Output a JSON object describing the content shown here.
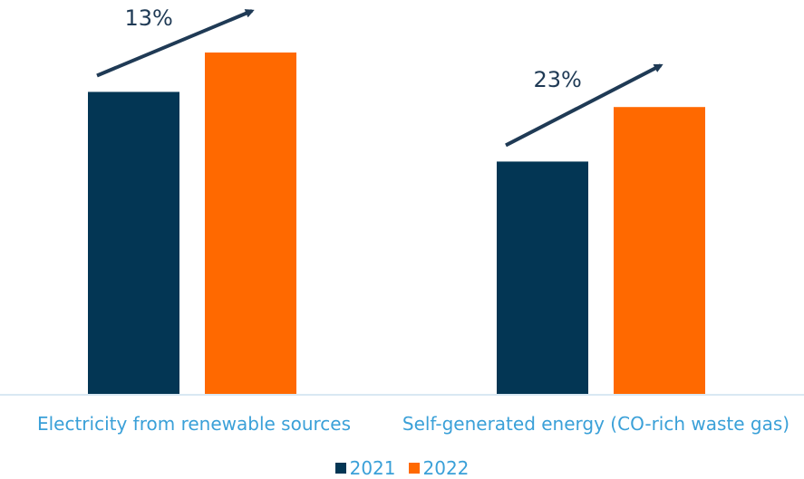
{
  "chart_data": {
    "type": "bar",
    "categories": [
      "Electricity from renewable sources",
      "Self-generated energy (CO-rich waste gas)"
    ],
    "series": [
      {
        "name": "2021",
        "color": "#033654",
        "values": [
          100,
          77
        ]
      },
      {
        "name": "2022",
        "color": "#ff6900",
        "values": [
          113,
          95
        ]
      }
    ],
    "ylim": [
      0,
      130
    ],
    "grid": false,
    "legend": "bottom-center",
    "annotations": [
      {
        "text": "13%",
        "category": 0
      },
      {
        "text": "23%",
        "category": 1
      }
    ]
  }
}
